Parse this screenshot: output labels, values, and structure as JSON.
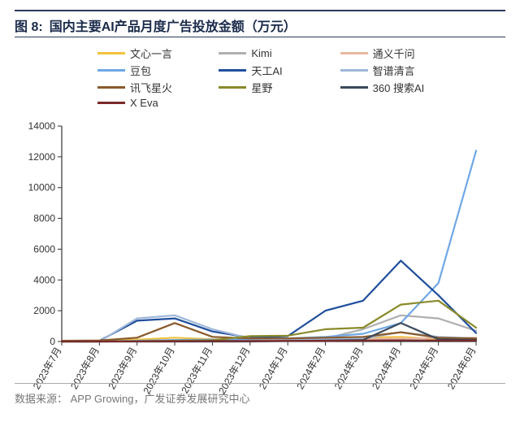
{
  "figure_label": "图 8:",
  "title": "国内主要AI产品月度广告投放金额（万元）",
  "source_prefix": "数据来源：",
  "source": "APP Growing，广发证券发展研究中心",
  "chart": {
    "type": "line",
    "background_color": "#ffffff",
    "axis_color": "#333333",
    "title_fontsize": 16,
    "label_fontsize": 12,
    "legend_fontsize": 13,
    "line_width": 2.2,
    "ylim": [
      0,
      14000
    ],
    "ytick_step": 2000,
    "yticks": [
      0,
      2000,
      4000,
      6000,
      8000,
      10000,
      12000,
      14000
    ],
    "categories": [
      "2023年7月",
      "2023年8月",
      "2023年9月",
      "2023年10月",
      "2023年11月",
      "2023年12月",
      "2024年1月",
      "2024年2月",
      "2024年3月",
      "2024年4月",
      "2024年5月",
      "2024年6月"
    ],
    "x_label_rotation_deg": -60,
    "legend_columns": 3,
    "series": [
      {
        "name": "文心一言",
        "color": "#f2c23e",
        "values": [
          20,
          40,
          120,
          250,
          150,
          120,
          150,
          180,
          260,
          300,
          150,
          100
        ]
      },
      {
        "name": "Kimi",
        "color": "#b0b0b0",
        "values": [
          0,
          0,
          0,
          0,
          0,
          30,
          60,
          200,
          800,
          1700,
          1500,
          700
        ]
      },
      {
        "name": "通义千问",
        "color": "#e7b8a0",
        "values": [
          0,
          10,
          30,
          60,
          80,
          100,
          120,
          150,
          180,
          200,
          220,
          250
        ]
      },
      {
        "name": "豆包",
        "color": "#6fa8e6",
        "values": [
          0,
          0,
          50,
          100,
          120,
          150,
          200,
          300,
          500,
          1200,
          3800,
          12400
        ]
      },
      {
        "name": "天工AI",
        "color": "#1f4e9c",
        "values": [
          0,
          50,
          1350,
          1500,
          650,
          250,
          350,
          2000,
          2650,
          5250,
          3000,
          550
        ]
      },
      {
        "name": "智谱清言",
        "color": "#9fb7d9",
        "values": [
          0,
          0,
          1500,
          1700,
          800,
          200,
          150,
          150,
          200,
          600,
          300,
          200
        ]
      },
      {
        "name": "讯飞星火",
        "color": "#8a5a2b",
        "values": [
          50,
          70,
          250,
          1200,
          300,
          200,
          200,
          250,
          300,
          600,
          250,
          200
        ]
      },
      {
        "name": "星野",
        "color": "#8a8a2a",
        "values": [
          0,
          0,
          20,
          50,
          80,
          350,
          380,
          800,
          900,
          2400,
          2650,
          900
        ]
      },
      {
        "name": "360 搜索AI",
        "color": "#3a4a5a",
        "values": [
          0,
          0,
          0,
          0,
          0,
          0,
          30,
          60,
          100,
          1200,
          150,
          100
        ]
      },
      {
        "name": "X Eva",
        "color": "#7a2a2a",
        "values": [
          0,
          0,
          10,
          20,
          30,
          30,
          40,
          50,
          60,
          80,
          70,
          60
        ]
      }
    ]
  }
}
